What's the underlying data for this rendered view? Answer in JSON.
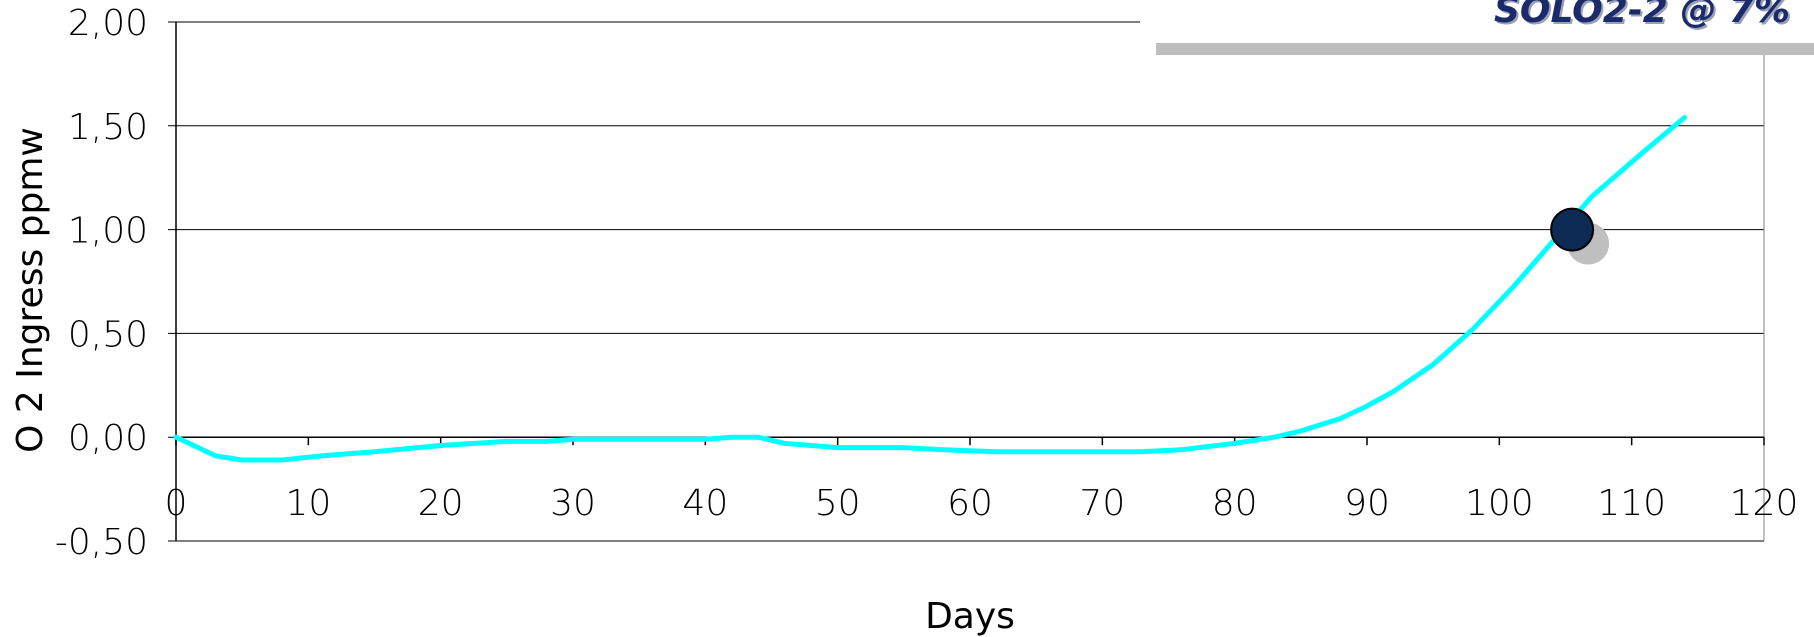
{
  "badge": {
    "text": "SOLO2-2 @ 7%",
    "text_color": "#1b2a6b",
    "shadow_color": "#bdbdbd"
  },
  "chart_data": {
    "type": "line",
    "title": "",
    "xlabel": "Days",
    "ylabel": "O 2 Ingress ppmw",
    "xlim": [
      0,
      120
    ],
    "ylim": [
      -0.5,
      2.0
    ],
    "x_ticks": [
      0,
      10,
      20,
      30,
      40,
      50,
      60,
      70,
      80,
      90,
      100,
      110,
      120
    ],
    "x_tick_labels": [
      "0",
      "10",
      "20",
      "30",
      "40",
      "50",
      "60",
      "70",
      "80",
      "90",
      "100",
      "110",
      "120"
    ],
    "y_ticks": [
      -0.5,
      0.0,
      0.5,
      1.0,
      1.5,
      2.0
    ],
    "y_tick_labels": [
      "-0,50",
      "0,00",
      "0,50",
      "1,00",
      "1,50",
      "2,00"
    ],
    "grid": "horizontal",
    "series": [
      {
        "color": "#00ffff",
        "x": [
          0,
          1,
          3,
          5,
          8,
          11,
          15,
          20,
          25,
          28,
          30,
          35,
          40,
          42,
          44,
          46,
          50,
          55,
          58,
          62,
          66,
          70,
          73,
          76,
          80,
          83,
          85,
          88,
          90,
          92,
          95,
          98,
          101,
          104,
          107,
          111,
          114
        ],
        "y": [
          0.0,
          -0.03,
          -0.09,
          -0.11,
          -0.11,
          -0.09,
          -0.07,
          -0.04,
          -0.02,
          -0.02,
          -0.01,
          -0.01,
          -0.01,
          0.0,
          0.0,
          -0.03,
          -0.05,
          -0.05,
          -0.06,
          -0.07,
          -0.07,
          -0.07,
          -0.07,
          -0.06,
          -0.03,
          0.0,
          0.03,
          0.09,
          0.15,
          0.22,
          0.35,
          0.52,
          0.72,
          0.94,
          1.16,
          1.38,
          1.54
        ]
      }
    ],
    "marker": {
      "x": 105.5,
      "y": 1.0,
      "color": "#0d2a55",
      "shadow_color": "#bfbfbf"
    }
  }
}
